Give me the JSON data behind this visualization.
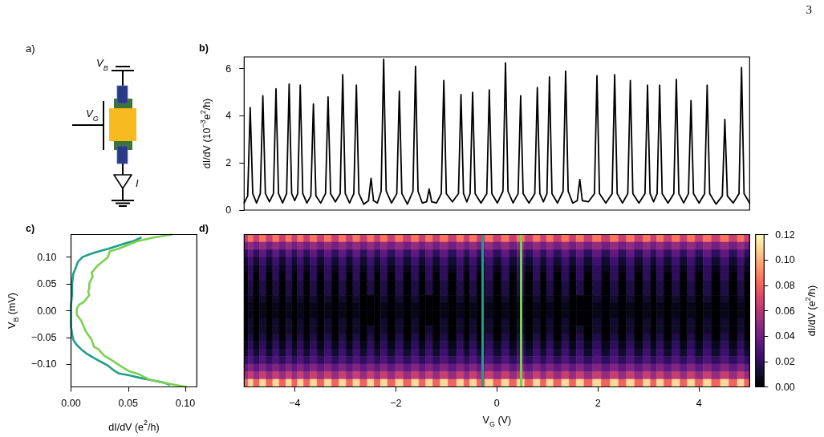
{
  "chart_data": [
    {
      "type": "other",
      "title": "a)",
      "annotations": [
        "V$_{B}$",
        "V$_{G}$",
        "I"
      ]
    },
    {
      "type": "line",
      "title": "b)",
      "ylabel": "dI/dV (10$^{−3}$e$^{2}$/h)",
      "color": "#000000",
      "marker": "none",
      "xlim": [
        -5,
        5
      ],
      "ylim": [
        0,
        6.5
      ],
      "yticks": [
        0,
        2,
        4,
        6
      ],
      "tick_labels": "y",
      "annotations": [
        "3"
      ],
      "x": [
        -5,
        -4.93,
        -4.88,
        -4.83,
        -4.755,
        -4.68,
        -4.63,
        -4.58,
        -4.5,
        -4.42,
        -4.37,
        -4.32,
        -4.24,
        -4.16,
        -4.11,
        -4.06,
        -4.0,
        -3.94,
        -3.89,
        -3.84,
        -3.76,
        -3.68,
        -3.63,
        -3.58,
        -3.485,
        -3.39,
        -3.34,
        -3.29,
        -3.195,
        -3.1,
        -3.05,
        -3.0,
        -2.915,
        -2.83,
        -2.78,
        -2.73,
        -2.635,
        -2.54,
        -2.49,
        -2.44,
        -2.365,
        -2.29,
        -2.24,
        -2.19,
        -2.085,
        -1.98,
        -1.93,
        -1.88,
        -1.77,
        -1.66,
        -1.61,
        -1.56,
        -1.475,
        -1.39,
        -1.34,
        -1.29,
        -1.195,
        -1.1,
        -1.05,
        -1.0,
        -0.88,
        -0.76,
        -0.71,
        -0.66,
        -0.595,
        -0.53,
        -0.48,
        -0.43,
        -0.315,
        -0.2,
        -0.15,
        -0.1,
        0.01,
        0.12,
        0.17,
        0.22,
        0.32,
        0.42,
        0.47,
        0.52,
        0.635,
        0.75,
        0.8,
        0.85,
        0.92,
        0.99,
        1.04,
        1.09,
        1.2,
        1.31,
        1.36,
        1.41,
        1.5,
        1.59,
        1.64,
        1.69,
        1.81,
        1.93,
        1.98,
        2.03,
        2.155,
        2.28,
        2.33,
        2.38,
        2.485,
        2.59,
        2.64,
        2.69,
        2.81,
        2.93,
        2.98,
        3.03,
        3.1,
        3.17,
        3.22,
        3.27,
        3.385,
        3.5,
        3.55,
        3.6,
        3.695,
        3.79,
        3.84,
        3.89,
        4.0,
        4.11,
        4.16,
        4.21,
        4.335,
        4.46,
        4.51,
        4.56,
        4.675,
        4.79,
        4.84,
        4.89,
        5
      ],
      "values": [
        0.3,
        0.6,
        4.35,
        0.7,
        0.3,
        0.7,
        4.85,
        0.7,
        0.35,
        0.7,
        5.15,
        0.7,
        0.3,
        0.7,
        5.35,
        0.7,
        0.4,
        0.7,
        5.3,
        0.7,
        0.3,
        0.6,
        4.5,
        0.6,
        0.3,
        0.7,
        4.8,
        0.7,
        0.35,
        0.7,
        5.75,
        0.7,
        0.3,
        0.7,
        5.3,
        0.7,
        0.25,
        0.4,
        1.35,
        0.4,
        0.3,
        0.8,
        6.4,
        0.8,
        0.3,
        0.7,
        5.05,
        0.7,
        0.25,
        0.8,
        6.1,
        0.8,
        0.3,
        0.35,
        0.9,
        0.35,
        0.3,
        0.7,
        5.5,
        0.7,
        0.35,
        0.7,
        4.9,
        0.7,
        0.35,
        0.7,
        5.0,
        0.7,
        0.3,
        0.7,
        5.1,
        0.7,
        0.3,
        0.8,
        6.25,
        0.8,
        0.3,
        0.7,
        4.85,
        0.7,
        0.3,
        0.7,
        5.2,
        0.7,
        0.35,
        0.7,
        5.65,
        0.7,
        0.3,
        0.8,
        5.9,
        0.8,
        0.3,
        0.4,
        1.3,
        0.4,
        0.35,
        0.7,
        5.7,
        0.7,
        0.3,
        0.7,
        5.75,
        0.7,
        0.3,
        0.7,
        5.5,
        0.7,
        0.3,
        0.7,
        5.3,
        0.7,
        0.35,
        0.7,
        5.3,
        0.7,
        0.3,
        0.7,
        5.55,
        0.7,
        0.3,
        0.7,
        4.65,
        0.7,
        0.3,
        0.7,
        5.3,
        0.7,
        0.25,
        0.6,
        3.85,
        0.6,
        0.3,
        0.7,
        6.05,
        0.7,
        0.3
      ]
    },
    {
      "type": "line",
      "title": "c)",
      "xlabel": "dI/dV (e$^{2}$/h)",
      "ylabel": "V$_{B}$ (mV)",
      "marker": "none",
      "xlim": [
        0,
        0.11
      ],
      "ylim": [
        -0.142,
        0.142
      ],
      "xticks": [
        {
          "value": 0,
          "label": "0.00"
        },
        {
          "value": 0.05,
          "label": "0.05"
        },
        {
          "value": 0.1,
          "label": "0.10"
        }
      ],
      "yticks": [
        {
          "value": -0.1,
          "label": "−0.10"
        },
        {
          "value": -0.05,
          "label": "−0.05"
        },
        {
          "value": 0,
          "label": "0.00"
        },
        {
          "value": 0.05,
          "label": "0.05"
        },
        {
          "value": 0.1,
          "label": "0.10"
        }
      ],
      "series": [
        {
          "color": "#1f9e89",
          "x": [
            0.061,
            0.055,
            0.048,
            0.041,
            0.032,
            0.023,
            0.016,
            0.01,
            0.006,
            0.004,
            0.002,
            0.001,
            0.001,
            0,
            0,
            0,
            0.001,
            0.002,
            0.005,
            0.009,
            0.013,
            0.019,
            0.025,
            0.032,
            0.038,
            0.042,
            0.05,
            0.06,
            0.069,
            0.081,
            0.086
          ],
          "values": [
            0.136,
            0.13,
            0.126,
            0.121,
            0.115,
            0.11,
            0.105,
            0.1,
            0.091,
            0.079,
            0.069,
            0.051,
            0.031,
            0.011,
            -0.009,
            -0.029,
            -0.044,
            -0.054,
            -0.064,
            -0.072,
            -0.079,
            -0.087,
            -0.094,
            -0.102,
            -0.112,
            -0.117,
            -0.12,
            -0.125,
            -0.129,
            -0.134,
            -0.138
          ]
        },
        {
          "color": "#7ad151",
          "x": [
            0.088,
            0.071,
            0.057,
            0.048,
            0.041,
            0.034,
            0.032,
            0.025,
            0.022,
            0.018,
            0.019,
            0.016,
            0.016,
            0.015,
            0.016,
            0.011,
            0.007,
            0.005,
            0.005,
            0.009,
            0.013,
            0.018,
            0.02,
            0.024,
            0.029,
            0.037,
            0.044,
            0.051,
            0.06,
            0.069,
            0.088,
            0.101
          ],
          "values": [
            0.142,
            0.136,
            0.129,
            0.121,
            0.115,
            0.111,
            0.099,
            0.087,
            0.081,
            0.071,
            0.064,
            0.051,
            0.041,
            0.036,
            0.029,
            0.016,
            0.011,
            0.004,
            -0.007,
            -0.019,
            -0.039,
            -0.054,
            -0.067,
            -0.072,
            -0.084,
            -0.094,
            -0.104,
            -0.113,
            -0.119,
            -0.129,
            -0.137,
            -0.142
          ]
        }
      ]
    },
    {
      "type": "heatmap",
      "title": "d)",
      "xlabel": "V$_{G}$ (V)",
      "clabel": "dI/dV (e$^{2}$/h)",
      "xlim": [
        -5,
        5
      ],
      "xticks": [
        {
          "value": -4,
          "label": "−4"
        },
        {
          "value": -2,
          "label": "−2"
        },
        0,
        2,
        4
      ],
      "tick_labels": "x",
      "clim": [
        0,
        0.12
      ],
      "cticks": [
        {
          "value": 0,
          "label": "0.00"
        },
        {
          "value": 0.02,
          "label": "0.02"
        },
        {
          "value": 0.04,
          "label": "0.04"
        },
        {
          "value": 0.06,
          "label": "0.06"
        },
        {
          "value": 0.08,
          "label": "0.08"
        },
        {
          "value": 0.1,
          "label": "0.10"
        },
        {
          "value": 0.12,
          "label": "0.12"
        }
      ],
      "ref_lines": [
        {
          "axis": "x",
          "value": -0.28,
          "color": "#1f9e89"
        },
        {
          "axis": "x",
          "value": 0.48,
          "color": "#7ad151"
        }
      ],
      "x": [
        -4.96,
        -4.88,
        -4.755,
        -4.63,
        -4.5,
        -4.37,
        -4.24,
        -4.11,
        -4.0,
        -3.89,
        -3.76,
        -3.63,
        -3.485,
        -3.34,
        -3.195,
        -3.05,
        -2.915,
        -2.78,
        -2.635,
        -2.49,
        -2.365,
        -2.24,
        -2.085,
        -1.93,
        -1.77,
        -1.61,
        -1.475,
        -1.34,
        -1.195,
        -1.05,
        -0.88,
        -0.71,
        -0.595,
        -0.48,
        -0.315,
        -0.15,
        0.01,
        0.17,
        0.32,
        0.47,
        0.635,
        0.8,
        0.92,
        1.04,
        1.2,
        1.36,
        1.5,
        1.64,
        1.81,
        1.98,
        2.155,
        2.33,
        2.485,
        2.64,
        2.81,
        2.98,
        3.1,
        3.22,
        3.385,
        3.55,
        3.695,
        3.84,
        4.0,
        4.16,
        4.335,
        4.51,
        4.675,
        4.84,
        4.95
      ],
      "y_categories": [
        null,
        null,
        null,
        null,
        null,
        null,
        null,
        null,
        null,
        null,
        null,
        null,
        null,
        null,
        null,
        null,
        null,
        null,
        null,
        null
      ],
      "cells": [
        [
          0.065,
          0.085,
          0.065,
          0.085,
          0.065,
          0.085,
          0.065,
          0.085,
          0.065,
          0.085,
          0.065,
          0.085,
          0.065,
          0.085,
          0.065,
          0.085,
          0.065,
          0.085,
          0.065,
          0.085,
          0.065,
          0.085,
          0.065,
          0.085,
          0.065,
          0.085,
          0.065,
          0.085,
          0.065,
          0.085,
          0.065,
          0.085,
          0.065,
          0.085,
          0.065,
          0.085,
          0.065,
          0.085,
          0.065,
          0.085,
          0.065,
          0.085,
          0.065,
          0.085,
          0.065,
          0.085,
          0.065,
          0.085,
          0.065,
          0.085,
          0.065,
          0.085,
          0.065,
          0.085,
          0.065,
          0.085,
          0.065,
          0.085,
          0.065,
          0.085,
          0.065,
          0.085,
          0.065,
          0.085,
          0.065,
          0.085,
          0.065,
          0.085,
          0.065
        ],
        [
          0.04,
          0.05,
          0.04,
          0.05,
          0.04,
          0.05,
          0.04,
          0.05,
          0.04,
          0.05,
          0.04,
          0.05,
          0.04,
          0.05,
          0.04,
          0.05,
          0.04,
          0.05,
          0.04,
          0.05,
          0.04,
          0.05,
          0.04,
          0.05,
          0.04,
          0.05,
          0.04,
          0.05,
          0.04,
          0.05,
          0.04,
          0.05,
          0.04,
          0.05,
          0.04,
          0.05,
          0.04,
          0.05,
          0.04,
          0.05,
          0.04,
          0.05,
          0.04,
          0.05,
          0.04,
          0.05,
          0.04,
          0.05,
          0.04,
          0.05,
          0.04,
          0.05,
          0.04,
          0.05,
          0.04,
          0.05,
          0.04,
          0.05,
          0.04,
          0.05,
          0.04,
          0.05,
          0.04,
          0.05,
          0.04,
          0.05,
          0.04,
          0.05,
          0.04
        ],
        [
          0.02,
          0.035,
          0.02,
          0.035,
          0.02,
          0.035,
          0.02,
          0.035,
          0.02,
          0.035,
          0.02,
          0.035,
          0.02,
          0.035,
          0.02,
          0.035,
          0.02,
          0.035,
          0.02,
          0.035,
          0.02,
          0.035,
          0.02,
          0.035,
          0.02,
          0.035,
          0.02,
          0.035,
          0.02,
          0.035,
          0.02,
          0.035,
          0.02,
          0.035,
          0.02,
          0.035,
          0.02,
          0.035,
          0.02,
          0.035,
          0.02,
          0.035,
          0.02,
          0.035,
          0.02,
          0.035,
          0.02,
          0.035,
          0.02,
          0.035,
          0.02,
          0.035,
          0.02,
          0.035,
          0.02,
          0.035,
          0.02,
          0.035,
          0.02,
          0.035,
          0.02,
          0.035,
          0.02,
          0.035,
          0.02,
          0.035,
          0.02,
          0.035,
          0.02
        ],
        [
          0.01,
          0.025,
          0.01,
          0.025,
          0.01,
          0.025,
          0.01,
          0.025,
          0.01,
          0.025,
          0.01,
          0.025,
          0.01,
          0.025,
          0.01,
          0.025,
          0.01,
          0.025,
          0.01,
          0.025,
          0.01,
          0.025,
          0.01,
          0.025,
          0.01,
          0.025,
          0.01,
          0.025,
          0.01,
          0.025,
          0.01,
          0.025,
          0.01,
          0.025,
          0.01,
          0.025,
          0.01,
          0.025,
          0.01,
          0.025,
          0.01,
          0.025,
          0.01,
          0.025,
          0.01,
          0.025,
          0.01,
          0.025,
          0.01,
          0.025,
          0.01,
          0.025,
          0.01,
          0.025,
          0.01,
          0.025,
          0.01,
          0.025,
          0.01,
          0.025,
          0.01,
          0.025,
          0.01,
          0.025,
          0.01,
          0.025,
          0.01,
          0.025,
          0.01
        ],
        [
          0.005,
          0.02,
          0.005,
          0.02,
          0.005,
          0.02,
          0.005,
          0.02,
          0.005,
          0.02,
          0.005,
          0.02,
          0.005,
          0.02,
          0.005,
          0.02,
          0.005,
          0.02,
          0.005,
          0.02,
          0.005,
          0.02,
          0.005,
          0.02,
          0.005,
          0.02,
          0.005,
          0.02,
          0.005,
          0.02,
          0.005,
          0.02,
          0.005,
          0.02,
          0.005,
          0.02,
          0.005,
          0.02,
          0.005,
          0.02,
          0.005,
          0.02,
          0.005,
          0.02,
          0.005,
          0.02,
          0.005,
          0.02,
          0.005,
          0.02,
          0.005,
          0.02,
          0.005,
          0.02,
          0.005,
          0.02,
          0.005,
          0.02,
          0.005,
          0.02,
          0.005,
          0.02,
          0.005,
          0.02,
          0.005,
          0.02,
          0.005,
          0.02,
          0.005
        ],
        [
          0,
          0.02,
          0,
          0.02,
          0,
          0.02,
          0,
          0.02,
          0,
          0.02,
          0,
          0.02,
          0,
          0.02,
          0,
          0.02,
          0,
          0.02,
          0,
          0.02,
          0,
          0.02,
          0,
          0.02,
          0,
          0.02,
          0,
          0.02,
          0,
          0.02,
          0,
          0.02,
          0,
          0.02,
          0,
          0.02,
          0,
          0.02,
          0,
          0.02,
          0,
          0.02,
          0,
          0.02,
          0,
          0.02,
          0,
          0.02,
          0,
          0.02,
          0,
          0.02,
          0,
          0.02,
          0,
          0.02,
          0,
          0.02,
          0,
          0.02,
          0,
          0.02,
          0,
          0.02,
          0,
          0.02,
          0,
          0.02,
          0
        ],
        [
          0,
          0.015,
          0,
          0.015,
          0,
          0.015,
          0,
          0.015,
          0,
          0.015,
          0,
          0.015,
          0,
          0.015,
          0,
          0.015,
          0,
          0.015,
          0,
          0.015,
          0,
          0.015,
          0,
          0.015,
          0,
          0.015,
          0,
          0.015,
          0,
          0.015,
          0,
          0.015,
          0,
          0.015,
          0,
          0.015,
          0,
          0.015,
          0,
          0.015,
          0,
          0.015,
          0,
          0.015,
          0,
          0.015,
          0,
          0.015,
          0,
          0.015,
          0,
          0.015,
          0,
          0.015,
          0,
          0.015,
          0,
          0.015,
          0,
          0.015,
          0,
          0.015,
          0,
          0.015,
          0,
          0.015,
          0,
          0.015,
          0
        ],
        [
          0,
          0.015,
          0,
          0.015,
          0,
          0.015,
          0,
          0.015,
          0,
          0.015,
          0,
          0.015,
          0,
          0.015,
          0,
          0.015,
          0,
          0.015,
          0,
          0.015,
          0,
          0.015,
          0,
          0.015,
          0,
          0.015,
          0,
          0.015,
          0,
          0.015,
          0,
          0.015,
          0,
          0.015,
          0,
          0.015,
          0,
          0.015,
          0,
          0.015,
          0,
          0.015,
          0,
          0.015,
          0,
          0.015,
          0,
          0.015,
          0,
          0.015,
          0,
          0.015,
          0,
          0.015,
          0,
          0.015,
          0,
          0.015,
          0,
          0.015,
          0,
          0.015,
          0,
          0.015,
          0,
          0.015,
          0,
          0.015,
          0
        ],
        [
          0,
          0.01,
          0,
          0.01,
          0,
          0.01,
          0,
          0.01,
          0,
          0.01,
          0,
          0.01,
          0,
          0.01,
          0,
          0.01,
          0,
          0.01,
          0,
          0,
          0,
          0.01,
          0,
          0.01,
          0,
          0.01,
          0,
          0,
          0,
          0.01,
          0,
          0.01,
          0,
          0.01,
          0,
          0.01,
          0,
          0.01,
          0,
          0.01,
          0,
          0.01,
          0,
          0.01,
          0,
          0.01,
          0,
          0,
          0,
          0.01,
          0,
          0.01,
          0,
          0.01,
          0,
          0.01,
          0,
          0.01,
          0,
          0.01,
          0,
          0.01,
          0,
          0.01,
          0,
          0.01,
          0,
          0.01,
          0
        ],
        [
          0,
          0.005,
          0,
          0.005,
          0,
          0.005,
          0,
          0.005,
          0,
          0.005,
          0,
          0.005,
          0,
          0.005,
          0,
          0.005,
          0,
          0.005,
          0,
          0,
          0,
          0.005,
          0,
          0.005,
          0,
          0.005,
          0,
          0,
          0,
          0.005,
          0,
          0.005,
          0,
          0.005,
          0,
          0.005,
          0,
          0.005,
          0,
          0.005,
          0,
          0.005,
          0,
          0.005,
          0,
          0.005,
          0,
          0,
          0,
          0.005,
          0,
          0.005,
          0,
          0.005,
          0,
          0.005,
          0,
          0.005,
          0,
          0.005,
          0,
          0.005,
          0,
          0.005,
          0,
          0.005,
          0,
          0.005,
          0
        ],
        [
          0,
          0.005,
          0,
          0.005,
          0,
          0.005,
          0,
          0.005,
          0,
          0.005,
          0,
          0.005,
          0,
          0.005,
          0,
          0.005,
          0,
          0.005,
          0,
          0,
          0,
          0.005,
          0,
          0.005,
          0,
          0.005,
          0,
          0,
          0,
          0.005,
          0,
          0.005,
          0,
          0.005,
          0,
          0.005,
          0,
          0.005,
          0,
          0.005,
          0,
          0.005,
          0,
          0.005,
          0,
          0.005,
          0,
          0,
          0,
          0.005,
          0,
          0.005,
          0,
          0.005,
          0,
          0.005,
          0,
          0.005,
          0,
          0.005,
          0,
          0.005,
          0,
          0.005,
          0,
          0.005,
          0,
          0.005,
          0
        ],
        [
          0,
          0.01,
          0,
          0.01,
          0,
          0.01,
          0,
          0.01,
          0,
          0.01,
          0,
          0.01,
          0,
          0.01,
          0,
          0.01,
          0,
          0.01,
          0,
          0,
          0,
          0.01,
          0,
          0.01,
          0,
          0.01,
          0,
          0,
          0,
          0.01,
          0,
          0.01,
          0,
          0.01,
          0,
          0.01,
          0,
          0.01,
          0,
          0.01,
          0,
          0.01,
          0,
          0.01,
          0,
          0.01,
          0,
          0,
          0,
          0.01,
          0,
          0.01,
          0,
          0.01,
          0,
          0.01,
          0,
          0.01,
          0,
          0.01,
          0,
          0.01,
          0,
          0.01,
          0,
          0.01,
          0,
          0.01,
          0
        ],
        [
          0,
          0.01,
          0,
          0.01,
          0,
          0.01,
          0,
          0.01,
          0,
          0.01,
          0,
          0.01,
          0,
          0.01,
          0,
          0.01,
          0,
          0.01,
          0,
          0.01,
          0,
          0.01,
          0,
          0.01,
          0,
          0.01,
          0,
          0.01,
          0,
          0.01,
          0,
          0.01,
          0,
          0.01,
          0,
          0.01,
          0,
          0.01,
          0,
          0.01,
          0,
          0.01,
          0,
          0.01,
          0,
          0.01,
          0,
          0.01,
          0,
          0.01,
          0,
          0.01,
          0,
          0.01,
          0,
          0.01,
          0,
          0.01,
          0,
          0.01,
          0,
          0.01,
          0,
          0.01,
          0,
          0.01,
          0,
          0.01,
          0
        ],
        [
          0,
          0.015,
          0,
          0.015,
          0,
          0.015,
          0,
          0.015,
          0,
          0.015,
          0,
          0.015,
          0,
          0.015,
          0,
          0.015,
          0,
          0.015,
          0,
          0.015,
          0,
          0.015,
          0,
          0.015,
          0,
          0.015,
          0,
          0.015,
          0,
          0.015,
          0,
          0.015,
          0,
          0.015,
          0,
          0.015,
          0,
          0.015,
          0,
          0.015,
          0,
          0.015,
          0,
          0.015,
          0,
          0.015,
          0,
          0.015,
          0,
          0.015,
          0,
          0.015,
          0,
          0.015,
          0,
          0.015,
          0,
          0.015,
          0,
          0.015,
          0,
          0.015,
          0,
          0.015,
          0,
          0.015,
          0,
          0.015,
          0
        ],
        [
          0.005,
          0.02,
          0.005,
          0.02,
          0.005,
          0.02,
          0.005,
          0.02,
          0.005,
          0.02,
          0.005,
          0.02,
          0.005,
          0.02,
          0.005,
          0.02,
          0.005,
          0.02,
          0.005,
          0.02,
          0.005,
          0.02,
          0.005,
          0.02,
          0.005,
          0.02,
          0.005,
          0.02,
          0.005,
          0.02,
          0.005,
          0.02,
          0.005,
          0.02,
          0.005,
          0.02,
          0.005,
          0.02,
          0.005,
          0.02,
          0.005,
          0.02,
          0.005,
          0.02,
          0.005,
          0.02,
          0.005,
          0.02,
          0.005,
          0.02,
          0.005,
          0.02,
          0.005,
          0.02,
          0.005,
          0.02,
          0.005,
          0.02,
          0.005,
          0.02,
          0.005,
          0.02,
          0.005,
          0.02,
          0.005,
          0.02,
          0.005,
          0.02,
          0.005
        ],
        [
          0.01,
          0.025,
          0.01,
          0.025,
          0.01,
          0.025,
          0.01,
          0.025,
          0.01,
          0.025,
          0.01,
          0.025,
          0.01,
          0.025,
          0.01,
          0.025,
          0.01,
          0.025,
          0.01,
          0.025,
          0.01,
          0.025,
          0.01,
          0.025,
          0.01,
          0.025,
          0.01,
          0.025,
          0.01,
          0.025,
          0.01,
          0.025,
          0.01,
          0.025,
          0.01,
          0.025,
          0.01,
          0.025,
          0.01,
          0.025,
          0.01,
          0.025,
          0.01,
          0.025,
          0.01,
          0.025,
          0.01,
          0.025,
          0.01,
          0.025,
          0.01,
          0.025,
          0.01,
          0.025,
          0.01,
          0.025,
          0.01,
          0.025,
          0.01,
          0.025,
          0.01,
          0.025,
          0.01,
          0.025,
          0.01,
          0.025,
          0.01,
          0.025,
          0.01
        ],
        [
          0.02,
          0.03,
          0.02,
          0.03,
          0.02,
          0.03,
          0.02,
          0.03,
          0.02,
          0.03,
          0.02,
          0.03,
          0.02,
          0.03,
          0.02,
          0.03,
          0.02,
          0.03,
          0.02,
          0.03,
          0.02,
          0.03,
          0.02,
          0.03,
          0.02,
          0.03,
          0.02,
          0.03,
          0.02,
          0.03,
          0.02,
          0.03,
          0.02,
          0.03,
          0.02,
          0.03,
          0.02,
          0.03,
          0.02,
          0.03,
          0.02,
          0.03,
          0.02,
          0.03,
          0.02,
          0.03,
          0.02,
          0.03,
          0.02,
          0.03,
          0.02,
          0.03,
          0.02,
          0.03,
          0.02,
          0.03,
          0.02,
          0.03,
          0.02,
          0.03,
          0.02,
          0.03,
          0.02,
          0.03,
          0.02,
          0.03,
          0.02,
          0.03,
          0.02
        ],
        [
          0.035,
          0.045,
          0.035,
          0.045,
          0.035,
          0.045,
          0.035,
          0.045,
          0.035,
          0.045,
          0.035,
          0.045,
          0.035,
          0.045,
          0.035,
          0.045,
          0.035,
          0.045,
          0.035,
          0.045,
          0.035,
          0.045,
          0.035,
          0.045,
          0.035,
          0.045,
          0.035,
          0.045,
          0.035,
          0.045,
          0.035,
          0.045,
          0.035,
          0.045,
          0.035,
          0.045,
          0.035,
          0.045,
          0.035,
          0.045,
          0.035,
          0.045,
          0.035,
          0.045,
          0.035,
          0.045,
          0.035,
          0.045,
          0.035,
          0.045,
          0.035,
          0.045,
          0.035,
          0.045,
          0.035,
          0.045,
          0.035,
          0.045,
          0.035,
          0.045,
          0.035,
          0.045,
          0.035,
          0.045,
          0.035,
          0.045,
          0.035,
          0.045,
          0.035
        ],
        [
          0.05,
          0.065,
          0.05,
          0.065,
          0.05,
          0.065,
          0.05,
          0.065,
          0.05,
          0.065,
          0.05,
          0.065,
          0.05,
          0.065,
          0.05,
          0.065,
          0.05,
          0.065,
          0.05,
          0.065,
          0.05,
          0.065,
          0.05,
          0.065,
          0.05,
          0.065,
          0.05,
          0.065,
          0.05,
          0.065,
          0.05,
          0.065,
          0.05,
          0.065,
          0.05,
          0.065,
          0.05,
          0.065,
          0.05,
          0.065,
          0.05,
          0.065,
          0.05,
          0.065,
          0.05,
          0.065,
          0.05,
          0.065,
          0.05,
          0.065,
          0.05,
          0.065,
          0.05,
          0.065,
          0.05,
          0.065,
          0.05,
          0.065,
          0.05,
          0.065,
          0.05,
          0.065,
          0.05,
          0.065,
          0.05,
          0.065,
          0.05,
          0.065,
          0.05
        ],
        [
          0.08,
          0.11,
          0.08,
          0.11,
          0.08,
          0.11,
          0.08,
          0.11,
          0.08,
          0.11,
          0.08,
          0.11,
          0.08,
          0.11,
          0.08,
          0.11,
          0.08,
          0.11,
          0.08,
          0.11,
          0.08,
          0.11,
          0.08,
          0.11,
          0.08,
          0.11,
          0.08,
          0.11,
          0.08,
          0.11,
          0.08,
          0.11,
          0.08,
          0.11,
          0.08,
          0.11,
          0.08,
          0.11,
          0.08,
          0.11,
          0.08,
          0.11,
          0.08,
          0.11,
          0.08,
          0.11,
          0.08,
          0.11,
          0.08,
          0.11,
          0.08,
          0.11,
          0.08,
          0.11,
          0.08,
          0.11,
          0.08,
          0.11,
          0.08,
          0.11,
          0.08,
          0.11,
          0.08,
          0.11,
          0.08,
          0.11,
          0.08,
          0.11,
          0.08
        ]
      ]
    }
  ]
}
